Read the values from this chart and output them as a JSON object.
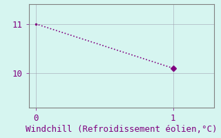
{
  "x": [
    0,
    1
  ],
  "y": [
    11,
    10.1
  ],
  "line_color": "#800080",
  "marker": ".",
  "marker_size": 3,
  "bg_color": "#d6f5f0",
  "grid_color": "#9999aa",
  "tick_color": "#800080",
  "label_color": "#800080",
  "spine_color": "#808080",
  "xlabel": "Windchill (Refroidissement éolien,°C)",
  "xlabel_fontsize": 9,
  "xlim": [
    -0.05,
    1.3
  ],
  "ylim": [
    9.3,
    11.4
  ],
  "xticks": [
    0,
    1
  ],
  "yticks": [
    10,
    11
  ],
  "tick_fontsize": 9,
  "font_family": "monospace",
  "linewidth": 1.2
}
